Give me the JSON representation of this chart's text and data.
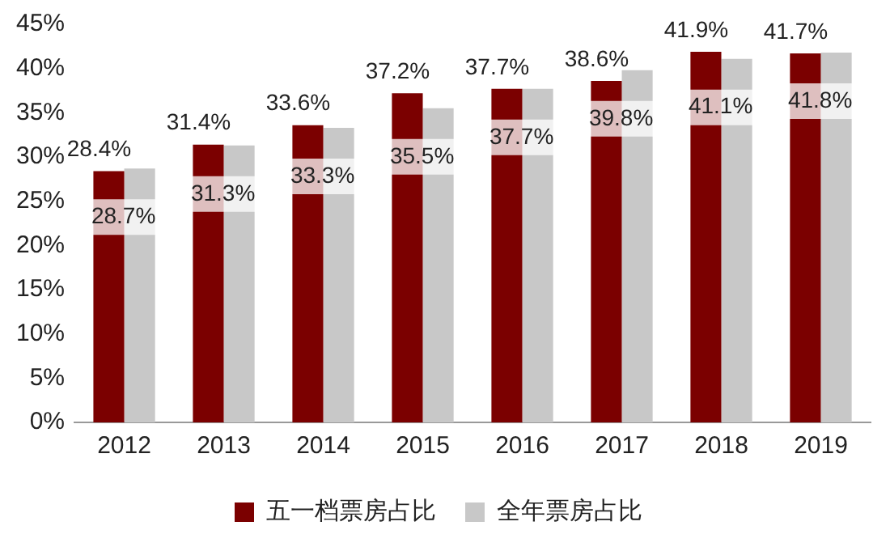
{
  "chart_data": {
    "type": "bar",
    "categories": [
      "2012",
      "2013",
      "2014",
      "2015",
      "2016",
      "2017",
      "2018",
      "2019"
    ],
    "series": [
      {
        "name": "五一档票房占比",
        "color": "#7b0000",
        "values": [
          28.4,
          31.4,
          33.6,
          37.2,
          37.7,
          38.6,
          41.9,
          41.7
        ],
        "value_labels": [
          "28.4%",
          "31.4%",
          "33.6%",
          "37.2%",
          "37.7%",
          "38.6%",
          "41.9%",
          "41.7%"
        ]
      },
      {
        "name": "全年票房占比",
        "color": "#c8c8c8",
        "values": [
          28.7,
          31.3,
          33.3,
          35.5,
          37.7,
          39.8,
          41.1,
          41.8
        ],
        "value_labels": [
          "28.7%",
          "31.3%",
          "33.3%",
          "35.5%",
          "37.7%",
          "39.8%",
          "41.1%",
          "41.8%"
        ]
      }
    ],
    "ylim": [
      0,
      45
    ],
    "yticks": [
      {
        "value": 0,
        "label": "0%"
      },
      {
        "value": 5,
        "label": "5%"
      },
      {
        "value": 10,
        "label": "10%"
      },
      {
        "value": 15,
        "label": "15%"
      },
      {
        "value": 20,
        "label": "20%"
      },
      {
        "value": 25,
        "label": "25%"
      },
      {
        "value": 30,
        "label": "30%"
      },
      {
        "value": 35,
        "label": "35%"
      },
      {
        "value": 40,
        "label": "40%"
      },
      {
        "value": 45,
        "label": "45%"
      }
    ],
    "grid": false,
    "legend": "bottom"
  }
}
